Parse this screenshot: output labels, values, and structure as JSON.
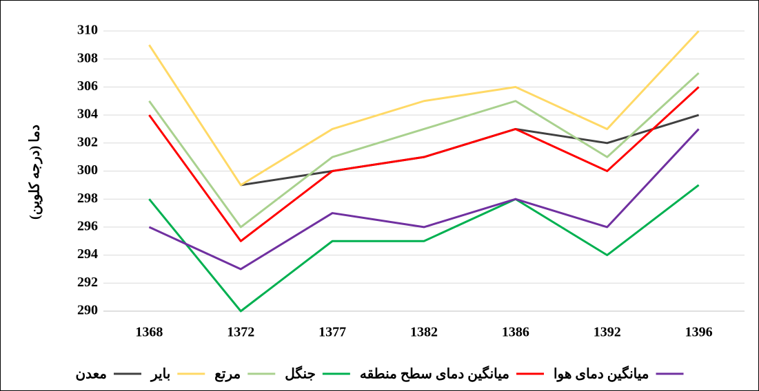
{
  "chart_data": {
    "type": "line",
    "y_label": "دما (درجه کلوین)",
    "categories": [
      "1368",
      "1372",
      "1377",
      "1382",
      "1386",
      "1392",
      "1396"
    ],
    "series": [
      {
        "name": "معدن",
        "color": "#404040",
        "values": [
          null,
          299,
          300,
          301,
          303,
          302,
          304
        ]
      },
      {
        "name": "بایر",
        "color": "#ffd966",
        "values": [
          309,
          299,
          303,
          305,
          306,
          303,
          310
        ]
      },
      {
        "name": "مرتع",
        "color": "#a9d18e",
        "values": [
          305,
          296,
          301,
          303,
          305,
          301,
          307
        ]
      },
      {
        "name": "جنگل",
        "color": "#00b050",
        "values": [
          298,
          290,
          295,
          295,
          298,
          294,
          299
        ]
      },
      {
        "name": "میانگین دمای سطح منطقه",
        "color": "#ff0000",
        "values": [
          304,
          295,
          300,
          301,
          303,
          300,
          306
        ]
      },
      {
        "name": "میانگین دمای هوا",
        "color": "#7030a0",
        "values": [
          296,
          293,
          297,
          296,
          298,
          296,
          303
        ]
      }
    ],
    "ylim": [
      290,
      310
    ],
    "yticks": [
      290,
      292,
      294,
      296,
      298,
      300,
      302,
      304,
      306,
      308,
      310
    ],
    "grid": true,
    "legend": "bottom"
  }
}
